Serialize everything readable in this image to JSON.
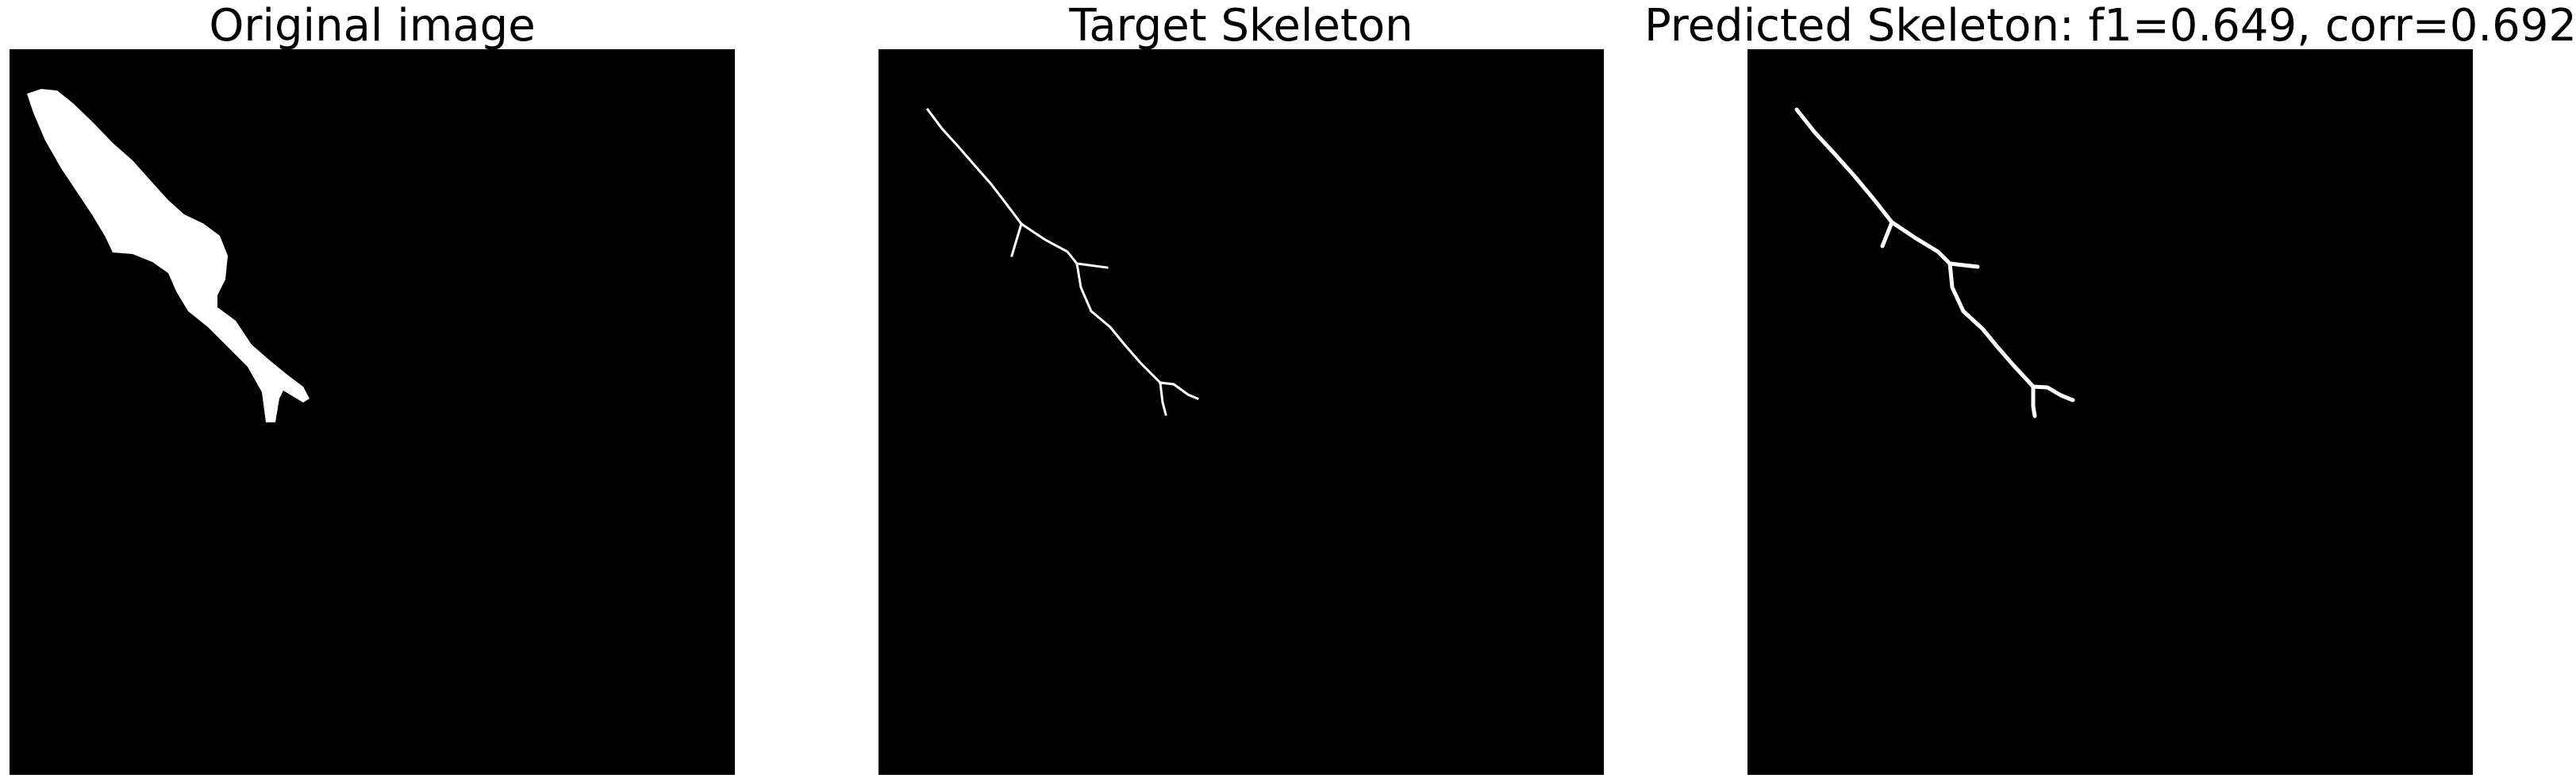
{
  "panels": {
    "original": {
      "title": "Original image"
    },
    "target": {
      "title": "Target Skeleton"
    },
    "predicted": {
      "title": "Predicted Skeleton: f1=0.649, corr=0.692"
    }
  },
  "colors": {
    "background": "#000000",
    "foreground": "#ffffff",
    "page": "#ffffff"
  }
}
